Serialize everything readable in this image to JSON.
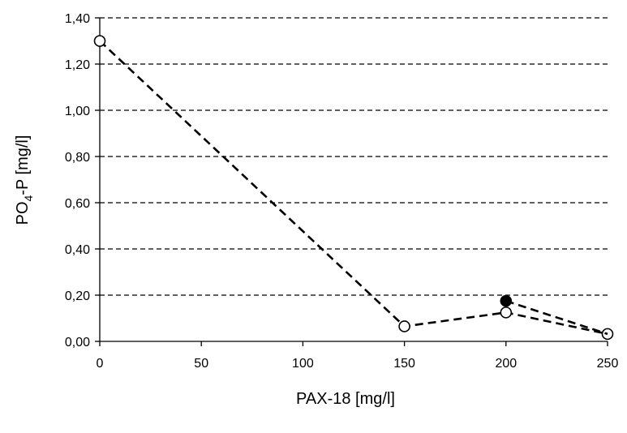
{
  "chart_data": {
    "type": "scatter",
    "xlabel": "PAX-18  [mg/l]",
    "ylabel": {
      "base": "PO",
      "subscript": "4",
      "rest": "-P  [mg/l]"
    },
    "xlim": [
      0,
      250
    ],
    "ylim": [
      0,
      1.4
    ],
    "x_ticks": [
      0,
      50,
      100,
      150,
      200,
      250
    ],
    "x_tick_labels": [
      "0",
      "50",
      "100",
      "150",
      "200",
      "250"
    ],
    "y_ticks": [
      0,
      0.2,
      0.4,
      0.6,
      0.8,
      1.0,
      1.2,
      1.4
    ],
    "y_tick_labels": [
      "0,00",
      "0,20",
      "0,40",
      "0,60",
      "0,80",
      "1,00",
      "1,20",
      "1,40"
    ],
    "grid": "horizontal dashed",
    "legend": "none",
    "series": [
      {
        "marker": "open-circle",
        "color": "#000000",
        "line": "dashed",
        "points": [
          {
            "x": 0,
            "y": 1.3
          },
          {
            "x": 150,
            "y": 0.065
          },
          {
            "x": 200,
            "y": 0.125
          },
          {
            "x": 250,
            "y": 0.032
          }
        ]
      },
      {
        "marker": "filled-circle",
        "color": "#000000",
        "line": "dashed",
        "points": [
          {
            "x": 200,
            "y": 0.175
          },
          {
            "x": 250,
            "y": 0.032
          }
        ]
      }
    ]
  }
}
